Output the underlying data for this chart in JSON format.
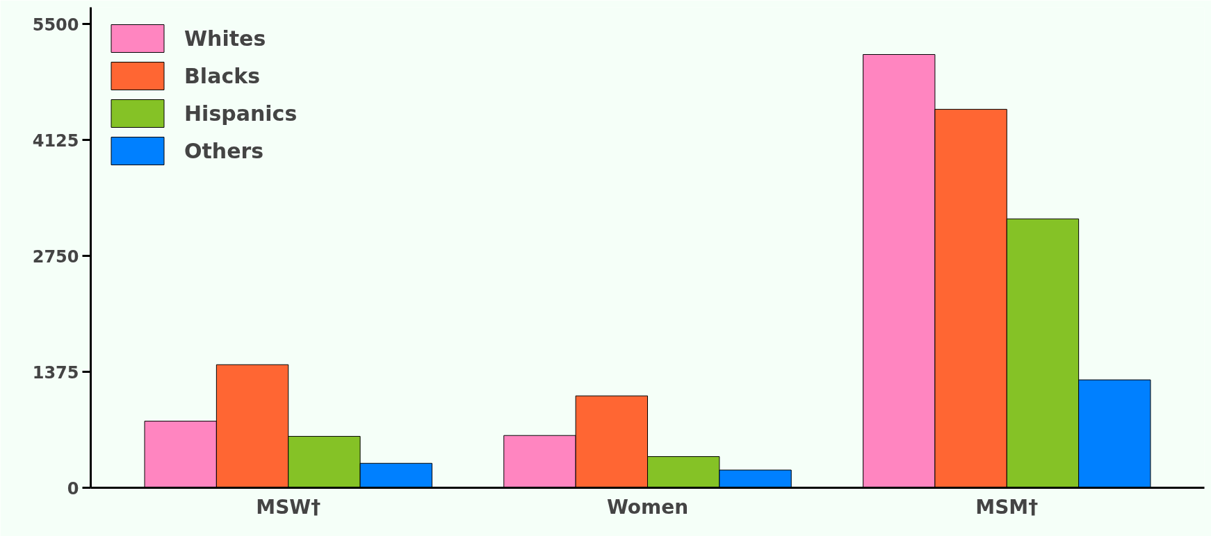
{
  "chart_data": {
    "type": "bar",
    "categories": [
      "MSW†",
      "Women",
      "MSM†"
    ],
    "series": [
      {
        "name": "Whites",
        "color": "#ff85c0",
        "values": [
          790,
          620,
          5140
        ]
      },
      {
        "name": "Blacks",
        "color": "#ff6633",
        "values": [
          1460,
          1090,
          4490
        ]
      },
      {
        "name": "Hispanics",
        "color": "#85c226",
        "values": [
          610,
          370,
          3190
        ]
      },
      {
        "name": "Others",
        "color": "#0080ff",
        "values": [
          290,
          210,
          1280
        ]
      }
    ],
    "ylim": [
      0,
      5700
    ],
    "yticks": [
      0,
      1375,
      2750,
      4125,
      5500
    ],
    "grid": false,
    "legend": "top left"
  }
}
